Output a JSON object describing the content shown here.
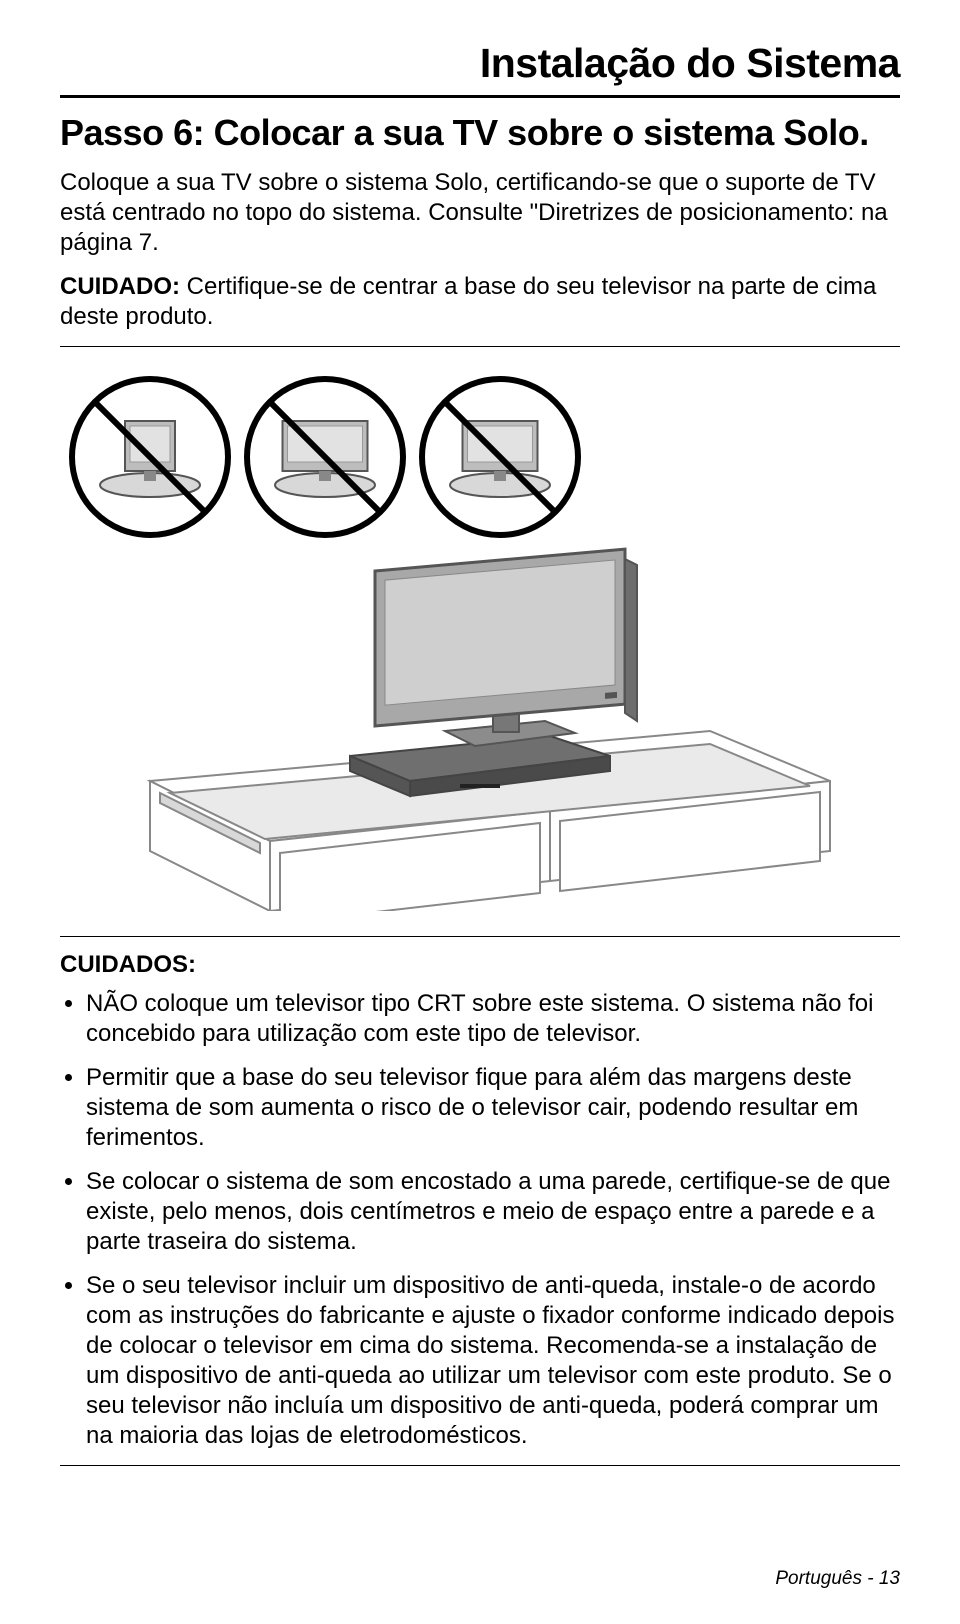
{
  "header": {
    "title": "Instalação do Sistema"
  },
  "step": {
    "title": "Passo 6: Colocar a sua TV sobre o sistema Solo."
  },
  "intro": "Coloque a sua TV sobre o sistema Solo, certificando-se que o suporte de TV está centrado no topo do sistema. Consulte \"Diretrizes de posicionamento: na página 7.",
  "caution": {
    "label": "CUIDADO:",
    "text": " Certifique-se de centrar a base do seu televisor na parte de cima deste produto."
  },
  "cuidados": {
    "title": "CUIDADOS:",
    "items": [
      "NÃO coloque um televisor tipo CRT sobre este sistema. O sistema não foi concebido para utilização com este tipo de televisor.",
      "Permitir que a base do seu televisor fique para além das margens deste sistema de som aumenta o risco de o televisor cair, podendo resultar em ferimentos.",
      "Se colocar o sistema de som encostado a uma parede, certifique-se de que existe, pelo menos, dois centímetros e meio de espaço entre a parede e a parte traseira do sistema.",
      "Se o seu televisor incluir um dispositivo de anti-queda, instale-o de acordo com as instruções do fabricante e ajuste o fixador conforme indicado depois de colocar o televisor em cima do sistema. Recomenda-se a instalação de um dispositivo de anti-queda ao utilizar um televisor com este produto. Se o seu televisor não incluía um dispositivo de anti-queda, poderá comprar um na maioria das lojas de eletrodomésticos."
    ]
  },
  "footer": {
    "text": "Português - 13"
  },
  "figure": {
    "prohibit_icons": {
      "count": 3,
      "radius": 78,
      "stroke": "#000000",
      "stroke_width": 6,
      "spacing": 175,
      "tv_fill": "#bdbdbd",
      "line_stroke": "#000000"
    },
    "main_illustration": {
      "tv_fill": "#a8a8a8",
      "tv_stroke": "#555555",
      "speaker_fill": "#808080",
      "cabinet_stroke": "#888888",
      "cabinet_fill": "#ffffff",
      "cabinet_inner": "#e8e8e8"
    }
  }
}
